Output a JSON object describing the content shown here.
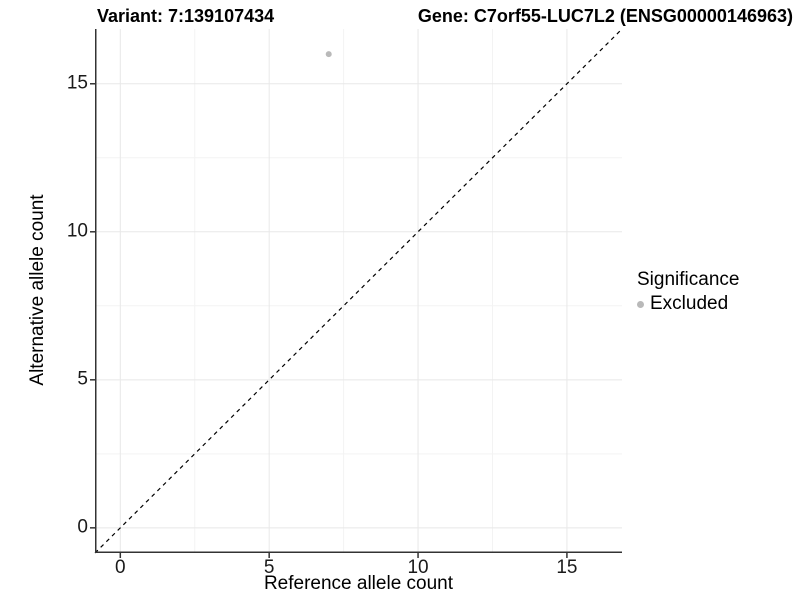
{
  "titles": {
    "left": "Variant: 7:139107434",
    "right": "Gene: C7orf55-LUC7L2 (ENSG00000146963)"
  },
  "chart_data": {
    "type": "scatter",
    "title_left": "Variant: 7:139107434",
    "title_right": "Gene: C7orf55-LUC7L2 (ENSG00000146963)",
    "xlabel": "Reference allele count",
    "ylabel": "Alternative allele count",
    "xlim": [
      -0.85,
      16.85
    ],
    "ylim": [
      -0.85,
      16.85
    ],
    "xticks": [
      0,
      5,
      10,
      15
    ],
    "yticks": [
      0,
      5,
      10,
      15
    ],
    "xticks_minor": [
      2.5,
      7.5,
      12.5
    ],
    "yticks_minor": [
      2.5,
      7.5,
      12.5
    ],
    "grid": true,
    "points": [
      {
        "x": 7,
        "y": 16,
        "significance": "Excluded"
      }
    ],
    "point_radius": 3,
    "reference_line": {
      "kind": "identity",
      "style": "dashed",
      "color": "#000000"
    },
    "legend": {
      "title": "Significance",
      "position": "right",
      "entries": [
        {
          "label": "Excluded",
          "color": "#b9b9b9"
        }
      ]
    }
  },
  "colors": {
    "background": "#ffffff",
    "grid_major": "#e8e8e8",
    "grid_minor": "#f3f3f3",
    "axis_line": "#333333",
    "tick_mark": "#333333",
    "text": "#000000",
    "point": "#bebebe"
  }
}
